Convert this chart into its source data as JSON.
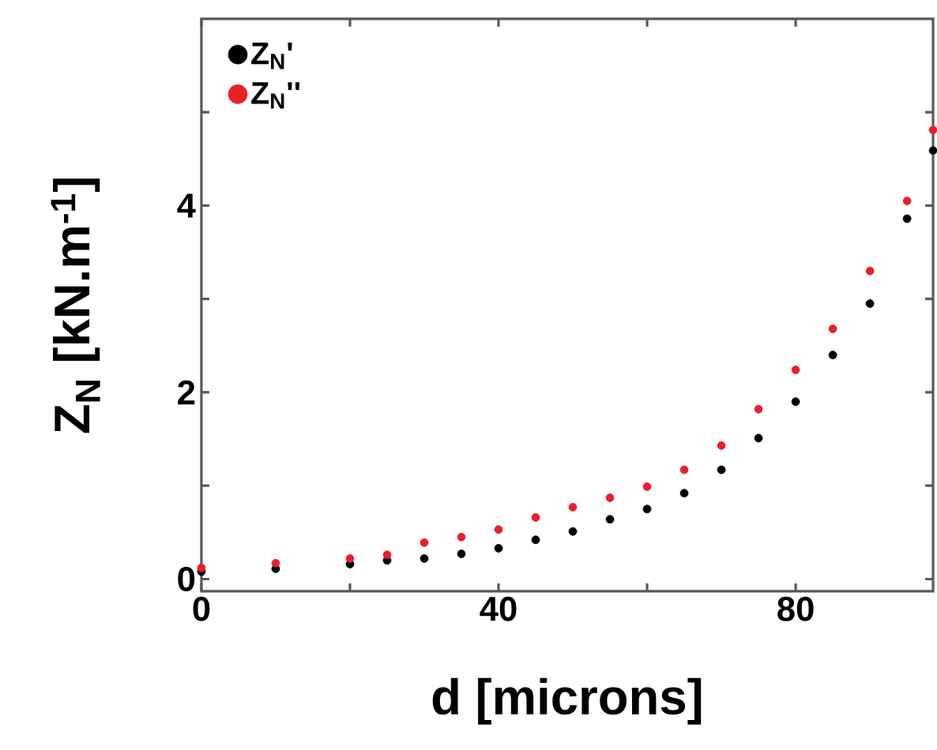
{
  "chart_data": {
    "type": "scatter",
    "xlabel": "d [microns]",
    "ylabel": "Z$_{N}$ [kN.m$^{-1}$]",
    "xlim": [
      0,
      98.5
    ],
    "ylim": [
      -0.13,
      6
    ],
    "xticks": [
      0,
      {
        "value": 20,
        "label": null
      },
      40,
      {
        "value": 60,
        "label": null
      },
      80
    ],
    "yticks": [
      0,
      {
        "value": 1,
        "label": null
      },
      2,
      {
        "value": 3,
        "label": null
      },
      4,
      {
        "value": 5,
        "label": null
      }
    ],
    "legend": "top left",
    "marker": "circle",
    "grid": false,
    "series": [
      {
        "name": "Z$_{N}$'",
        "color": "#000000",
        "x": [
          0,
          10,
          20,
          25,
          30,
          35,
          40,
          45,
          50,
          55,
          60,
          65,
          70,
          75,
          80,
          85,
          90,
          95,
          98.5
        ],
        "values": [
          0.08,
          0.11,
          0.16,
          0.2,
          0.22,
          0.27,
          0.33,
          0.42,
          0.51,
          0.64,
          0.75,
          0.92,
          1.17,
          1.51,
          1.9,
          2.4,
          2.95,
          3.86,
          4.59
        ]
      },
      {
        "name": "Z$_{N}$''",
        "color": "#e8202a",
        "x": [
          0,
          10,
          20,
          25,
          30,
          35,
          40,
          45,
          50,
          55,
          60,
          65,
          70,
          75,
          80,
          85,
          90,
          95,
          98.5
        ],
        "values": [
          0.12,
          0.17,
          0.22,
          0.26,
          0.39,
          0.45,
          0.53,
          0.66,
          0.77,
          0.87,
          0.99,
          1.17,
          1.43,
          1.82,
          2.24,
          2.68,
          3.3,
          4.05,
          4.81
        ]
      }
    ]
  }
}
